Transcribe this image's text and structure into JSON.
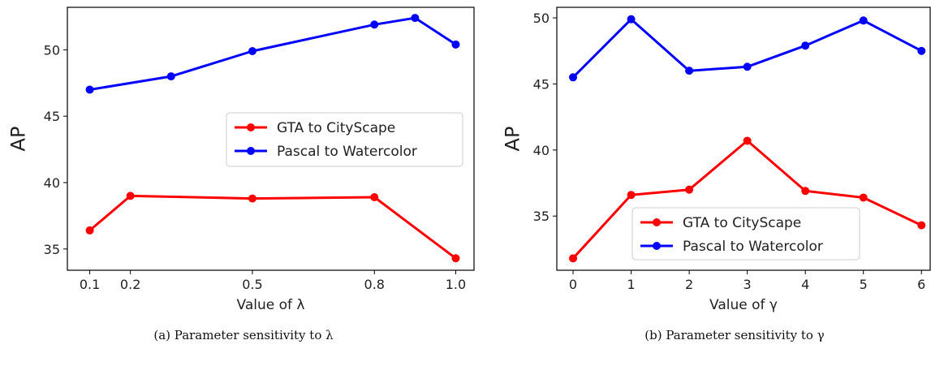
{
  "chart_data": [
    {
      "type": "line",
      "caption": "(a)  Parameter sensitivity to λ",
      "xlabel": "Value of λ",
      "ylabel": "AP",
      "x_ticks": [
        0.1,
        0.2,
        0.5,
        0.8,
        1.0
      ],
      "x_tick_labels": [
        "0.1",
        "0.2",
        "0.5",
        "0.8",
        "1.0"
      ],
      "y_ticks": [
        35,
        40,
        45,
        50
      ],
      "xlim": [
        0.045,
        1.045
      ],
      "ylim": [
        33.4,
        53.2
      ],
      "legend_position": "center-right",
      "series": [
        {
          "name": "GTA to CityScape",
          "color": "#ff0000",
          "x": [
            0.1,
            0.2,
            0.5,
            0.8,
            1.0
          ],
          "y": [
            36.4,
            39.0,
            38.8,
            38.9,
            34.3
          ]
        },
        {
          "name": "Pascal to Watercolor",
          "color": "#0000ff",
          "x": [
            0.1,
            0.3,
            0.5,
            0.8,
            0.9,
            1.0
          ],
          "y": [
            47.0,
            48.0,
            49.9,
            51.9,
            52.4,
            50.4
          ]
        }
      ]
    },
    {
      "type": "line",
      "caption": "(b)  Parameter sensitivity to γ",
      "xlabel": "Value of γ",
      "ylabel": "AP",
      "x_ticks": [
        0,
        1,
        2,
        3,
        4,
        5,
        6
      ],
      "x_tick_labels": [
        "0",
        "1",
        "2",
        "3",
        "4",
        "5",
        "6"
      ],
      "y_ticks": [
        35,
        40,
        45,
        50
      ],
      "xlim": [
        -0.28,
        6.15
      ],
      "ylim": [
        30.9,
        50.8
      ],
      "legend_position": "bottom-right",
      "series": [
        {
          "name": "GTA to CityScape",
          "color": "#ff0000",
          "x": [
            0,
            1,
            2,
            3,
            4,
            5,
            6
          ],
          "y": [
            31.8,
            36.6,
            37.0,
            40.7,
            36.9,
            36.4,
            34.3
          ]
        },
        {
          "name": "Pascal to Watercolor",
          "color": "#0000ff",
          "x": [
            0,
            1,
            2,
            3,
            4,
            5,
            6
          ],
          "y": [
            45.5,
            49.9,
            46.0,
            46.3,
            47.9,
            49.8,
            47.5
          ]
        }
      ]
    }
  ]
}
